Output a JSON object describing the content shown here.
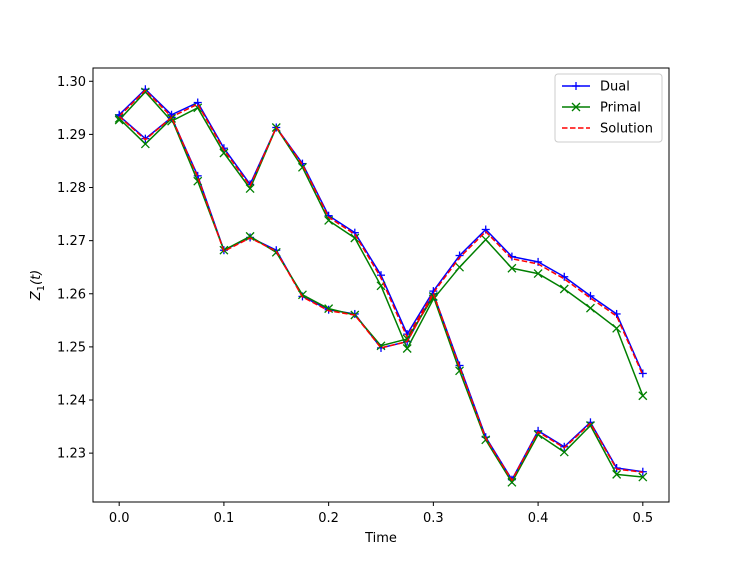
{
  "chart_data": {
    "type": "line",
    "title": "",
    "xlabel": "Time",
    "ylabel": "Z_1(t)",
    "xlim": [
      -0.025,
      0.525
    ],
    "ylim": [
      1.2208,
      1.3025
    ],
    "xticks": [
      0.0,
      0.1,
      0.2,
      0.3,
      0.4,
      0.5
    ],
    "xtick_labels": [
      "0.0",
      "0.1",
      "0.2",
      "0.3",
      "0.4",
      "0.5"
    ],
    "yticks": [
      1.23,
      1.24,
      1.25,
      1.26,
      1.27,
      1.28,
      1.29,
      1.3
    ],
    "ytick_labels": [
      "1.23",
      "1.24",
      "1.25",
      "1.26",
      "1.27",
      "1.28",
      "1.29",
      "1.30"
    ],
    "grid": false,
    "legend_position": "top-right",
    "legend": [
      "Dual",
      "Primal",
      "Solution"
    ],
    "x": [
      0.0,
      0.025,
      0.05,
      0.075,
      0.1,
      0.125,
      0.15,
      0.175,
      0.2,
      0.225,
      0.25,
      0.275,
      0.3,
      0.325,
      0.35,
      0.375,
      0.4,
      0.425,
      0.45,
      0.475,
      0.5
    ],
    "series": [
      {
        "name": "Dual",
        "group": "upper",
        "color": "#0000ff",
        "marker": "plus",
        "dash": "solid",
        "values": [
          1.2937,
          1.2985,
          1.2937,
          1.296,
          1.2874,
          1.2806,
          1.2913,
          1.2845,
          1.2747,
          1.2715,
          1.2635,
          1.2524,
          1.2605,
          1.2672,
          1.2721,
          1.267,
          1.266,
          1.2632,
          1.2596,
          1.2562,
          1.245
        ]
      },
      {
        "name": "Primal",
        "group": "upper",
        "color": "#007f00",
        "marker": "x",
        "dash": "solid",
        "values": [
          1.2927,
          1.298,
          1.2925,
          1.295,
          1.2865,
          1.2798,
          1.2913,
          1.2838,
          1.2738,
          1.2705,
          1.2615,
          1.2497,
          1.259,
          1.265,
          1.2702,
          1.2648,
          1.2638,
          1.2609,
          1.2573,
          1.2535,
          1.2408
        ]
      },
      {
        "name": "Solution",
        "group": "upper",
        "color": "#ff0000",
        "marker": "none",
        "dash": "dashed",
        "values": [
          1.2934,
          1.2983,
          1.2933,
          1.2957,
          1.2871,
          1.2803,
          1.2913,
          1.2843,
          1.2744,
          1.2712,
          1.263,
          1.2518,
          1.2602,
          1.2668,
          1.2717,
          1.2666,
          1.2656,
          1.2628,
          1.2592,
          1.2558,
          1.2447
        ]
      },
      {
        "name": "Dual",
        "group": "lower",
        "color": "#0000ff",
        "marker": "plus",
        "dash": "solid",
        "values": [
          1.2935,
          1.2892,
          1.2932,
          1.2822,
          1.2682,
          1.2706,
          1.2682,
          1.2595,
          1.257,
          1.2562,
          1.2498,
          1.251,
          1.26,
          1.2465,
          1.233,
          1.225,
          1.2342,
          1.2312,
          1.2358,
          1.2272,
          1.2265
        ]
      },
      {
        "name": "Primal",
        "group": "lower",
        "color": "#007f00",
        "marker": "x",
        "dash": "solid",
        "values": [
          1.293,
          1.2882,
          1.293,
          1.2812,
          1.2682,
          1.2708,
          1.2678,
          1.2598,
          1.2572,
          1.256,
          1.2502,
          1.2515,
          1.2595,
          1.2455,
          1.2325,
          1.2245,
          1.2335,
          1.2302,
          1.2352,
          1.226,
          1.2255
        ]
      },
      {
        "name": "Solution",
        "group": "lower",
        "color": "#ff0000",
        "marker": "none",
        "dash": "dashed",
        "values": [
          1.2934,
          1.289,
          1.2932,
          1.282,
          1.268,
          1.2705,
          1.268,
          1.2594,
          1.2568,
          1.256,
          1.2498,
          1.251,
          1.26,
          1.2462,
          1.2328,
          1.2249,
          1.234,
          1.231,
          1.2356,
          1.227,
          1.2264
        ]
      }
    ]
  }
}
